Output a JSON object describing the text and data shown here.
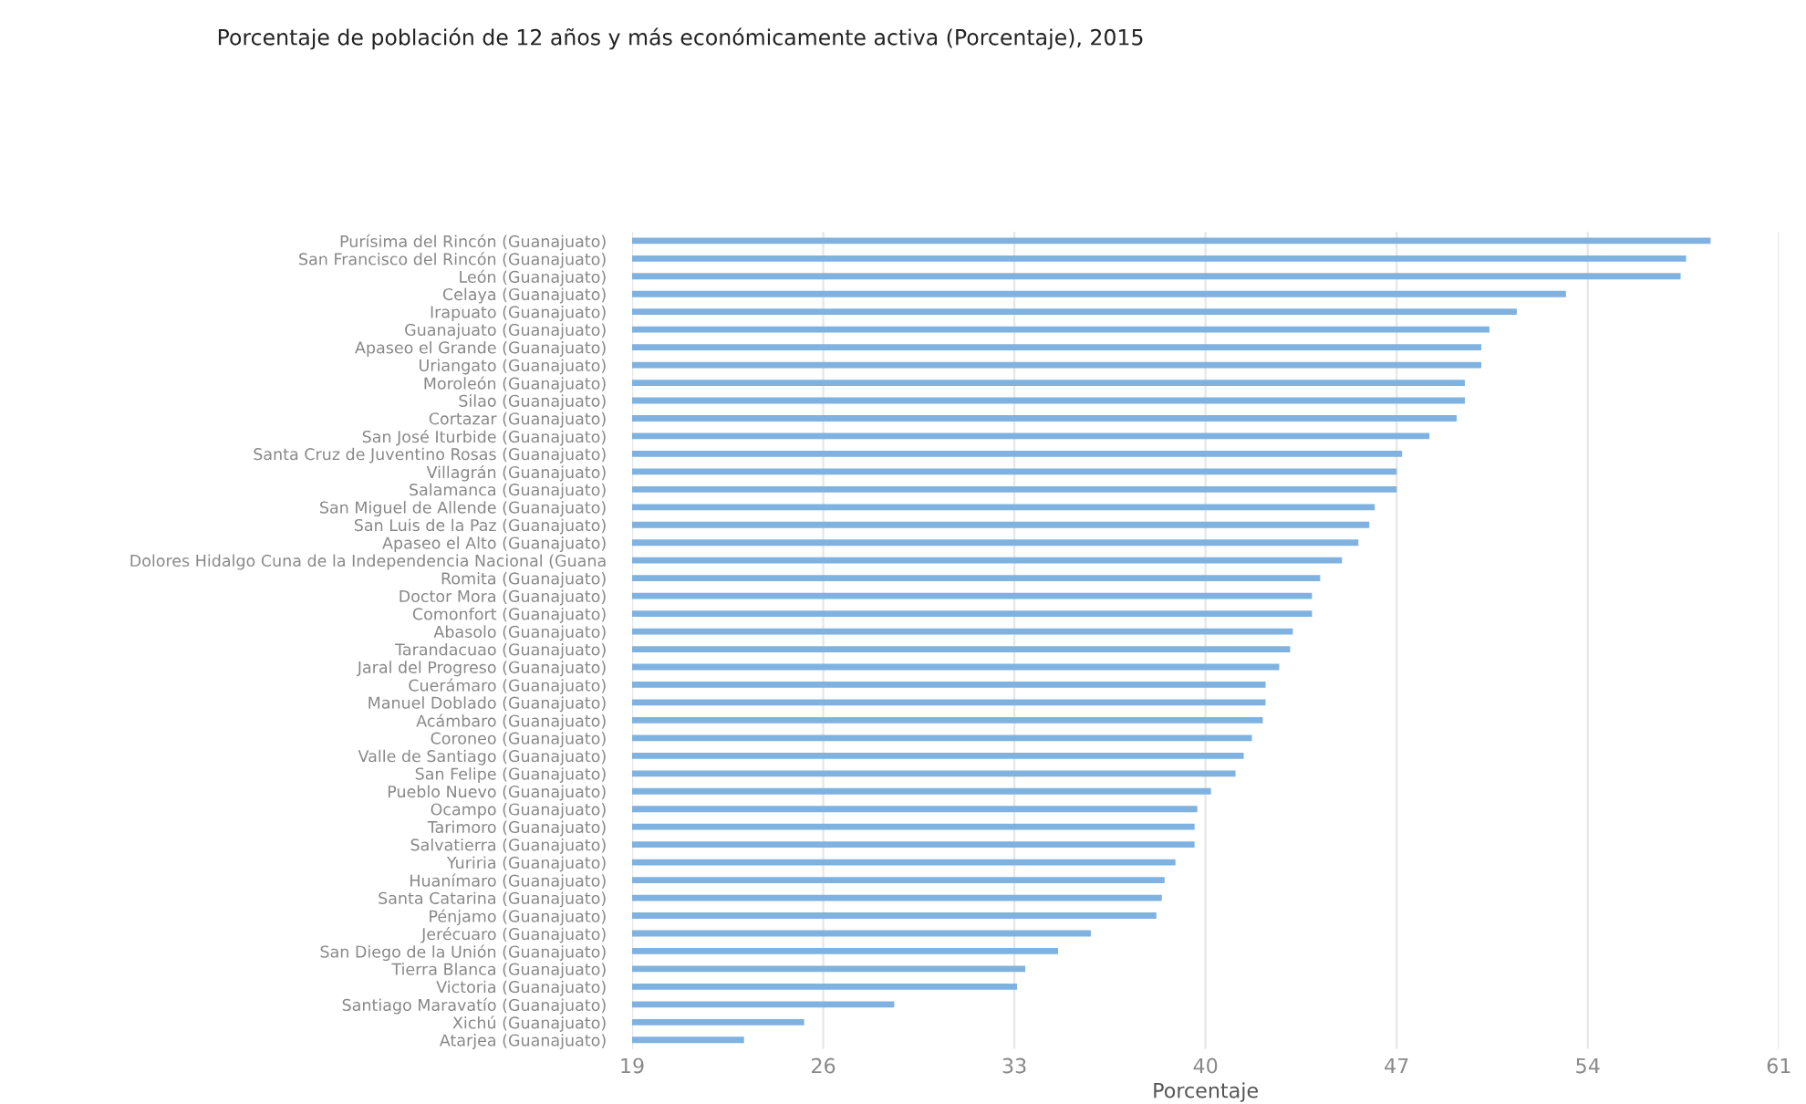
{
  "chart_data": {
    "type": "bar",
    "orientation": "horizontal",
    "title": "Porcentaje de población de 12 años y más económicamente activa (Porcentaje), 2015",
    "xlabel": "Porcentaje",
    "categories": [
      "Purísima del Rincón (Guanajuato)",
      "San Francisco del Rincón (Guanajuato)",
      "León (Guanajuato)",
      "Celaya (Guanajuato)",
      "Irapuato (Guanajuato)",
      "Guanajuato (Guanajuato)",
      "Apaseo el Grande (Guanajuato)",
      "Uriangato (Guanajuato)",
      "Moroleón (Guanajuato)",
      "Silao (Guanajuato)",
      "Cortazar (Guanajuato)",
      "San José Iturbide (Guanajuato)",
      "Santa Cruz de Juventino Rosas (Guanajuato)",
      "Villagrán (Guanajuato)",
      "Salamanca (Guanajuato)",
      "San Miguel de Allende (Guanajuato)",
      "San Luis de la Paz (Guanajuato)",
      "Apaseo el Alto (Guanajuato)",
      "Dolores Hidalgo Cuna de la Independencia Nacional (Guana",
      "Romita (Guanajuato)",
      "Doctor Mora (Guanajuato)",
      "Comonfort (Guanajuato)",
      "Abasolo (Guanajuato)",
      "Tarandacuao (Guanajuato)",
      "Jaral del Progreso (Guanajuato)",
      "Cuerámaro (Guanajuato)",
      "Manuel Doblado (Guanajuato)",
      "Acámbaro (Guanajuato)",
      "Coroneo (Guanajuato)",
      "Valle de Santiago (Guanajuato)",
      "San Felipe (Guanajuato)",
      "Pueblo Nuevo (Guanajuato)",
      "Ocampo (Guanajuato)",
      "Tarimoro (Guanajuato)",
      "Salvatierra (Guanajuato)",
      "Yuriria (Guanajuato)",
      "Huanímaro (Guanajuato)",
      "Santa Catarina (Guanajuato)",
      "Pénjamo (Guanajuato)",
      "Jerécuaro (Guanajuato)",
      "San Diego de la Unión (Guanajuato)",
      "Tierra Blanca (Guanajuato)",
      "Victoria (Guanajuato)",
      "Santiago Maravatío (Guanajuato)",
      "Xichú (Guanajuato)",
      "Atarjea (Guanajuato)"
    ],
    "values": [
      58.5,
      57.6,
      57.4,
      53.2,
      51.4,
      50.4,
      50.1,
      50.1,
      49.5,
      49.5,
      49.2,
      48.2,
      47.2,
      47.0,
      47.0,
      46.2,
      46.0,
      45.6,
      45.0,
      44.2,
      43.9,
      43.9,
      43.2,
      43.1,
      42.7,
      42.2,
      42.2,
      42.1,
      41.7,
      41.4,
      41.1,
      40.2,
      39.7,
      39.6,
      39.6,
      38.9,
      38.5,
      38.4,
      38.2,
      35.8,
      34.6,
      33.4,
      33.1,
      28.6,
      25.3,
      23.1
    ],
    "color": "#7fb2e0",
    "xlim": [
      19,
      61
    ],
    "xticks": [
      19,
      26,
      33,
      40,
      47,
      54,
      61
    ],
    "grid": "x"
  }
}
